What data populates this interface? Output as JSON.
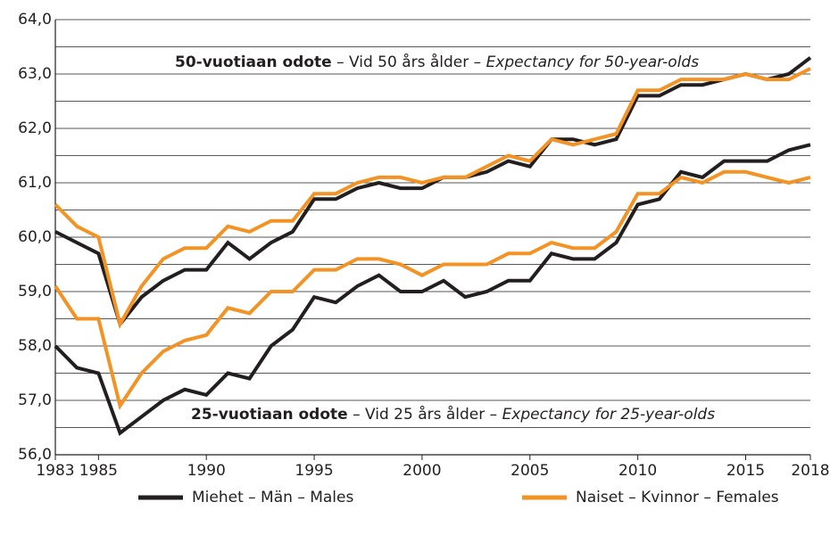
{
  "chart_data": {
    "type": "line",
    "x": [
      1983,
      1984,
      1985,
      1986,
      1987,
      1988,
      1989,
      1990,
      1991,
      1992,
      1993,
      1994,
      1995,
      1996,
      1997,
      1998,
      1999,
      2000,
      2001,
      2002,
      2003,
      2004,
      2005,
      2006,
      2007,
      2008,
      2009,
      2010,
      2011,
      2012,
      2013,
      2014,
      2015,
      2016,
      2017,
      2018
    ],
    "series": [
      {
        "name": "Miehet – Män – Males",
        "color": "#231f20",
        "values_50": [
          60.1,
          59.9,
          59.7,
          58.4,
          58.9,
          59.2,
          59.4,
          59.4,
          59.9,
          59.6,
          59.9,
          60.1,
          60.7,
          60.7,
          60.9,
          61.0,
          60.9,
          60.9,
          61.1,
          61.1,
          61.2,
          61.4,
          61.3,
          61.8,
          61.8,
          61.7,
          61.8,
          62.6,
          62.6,
          62.8,
          62.8,
          62.9,
          63.0,
          62.9,
          63.0,
          63.3
        ],
        "values_25": [
          58.0,
          57.6,
          57.5,
          56.4,
          56.7,
          57.0,
          57.2,
          57.1,
          57.5,
          57.4,
          58.0,
          58.3,
          58.9,
          58.8,
          59.1,
          59.3,
          59.0,
          59.0,
          59.2,
          58.9,
          59.0,
          59.2,
          59.2,
          59.7,
          59.6,
          59.6,
          59.9,
          60.6,
          60.7,
          61.2,
          61.1,
          61.4,
          61.4,
          61.4,
          61.6,
          61.7
        ]
      },
      {
        "name": "Naiset – Kvinnor – Females",
        "color": "#f39325",
        "values_50": [
          60.6,
          60.2,
          60.0,
          58.4,
          59.1,
          59.6,
          59.8,
          59.8,
          60.2,
          60.1,
          60.3,
          60.3,
          60.8,
          60.8,
          61.0,
          61.1,
          61.1,
          61.0,
          61.1,
          61.1,
          61.3,
          61.5,
          61.4,
          61.8,
          61.7,
          61.8,
          61.9,
          62.7,
          62.7,
          62.9,
          62.9,
          62.9,
          63.0,
          62.9,
          62.9,
          63.1
        ],
        "values_25": [
          59.1,
          58.5,
          58.5,
          56.9,
          57.5,
          57.9,
          58.1,
          58.2,
          58.7,
          58.6,
          59.0,
          59.0,
          59.4,
          59.4,
          59.6,
          59.6,
          59.5,
          59.3,
          59.5,
          59.5,
          59.5,
          59.7,
          59.7,
          59.9,
          59.8,
          59.8,
          60.1,
          60.8,
          60.8,
          61.1,
          61.0,
          61.2,
          61.2,
          61.1,
          61.0,
          61.1
        ]
      }
    ],
    "annotations": [
      {
        "bold": "50-vuotiaan odote",
        "regular": " – Vid 50 års ålder – ",
        "italic": "Expectancy for 50-year-olds"
      },
      {
        "bold": "25-vuotiaan odote",
        "regular": " – Vid 25 års ålder – ",
        "italic": "Expectancy for 25-year-olds"
      }
    ],
    "xlim": [
      1983,
      2018
    ],
    "xticks": [
      1983,
      1985,
      1990,
      1995,
      2000,
      2005,
      2010,
      2015,
      2018
    ],
    "ylim": [
      56,
      64
    ],
    "yticks": [
      {
        "value": 56,
        "label": "56,0"
      },
      {
        "value": 57,
        "label": "57,0"
      },
      {
        "value": 58,
        "label": "58,0"
      },
      {
        "value": 59,
        "label": "59,0"
      },
      {
        "value": 60,
        "label": "60,0"
      },
      {
        "value": 61,
        "label": "61,0"
      },
      {
        "value": 62,
        "label": "62,0"
      },
      {
        "value": 63,
        "label": "63,0"
      },
      {
        "value": 64,
        "label": "64,0"
      }
    ],
    "minor_grid": [
      56.5,
      57.5,
      58.5,
      59.5,
      60.5,
      61.5,
      62.5,
      63.5
    ],
    "grid": true
  }
}
